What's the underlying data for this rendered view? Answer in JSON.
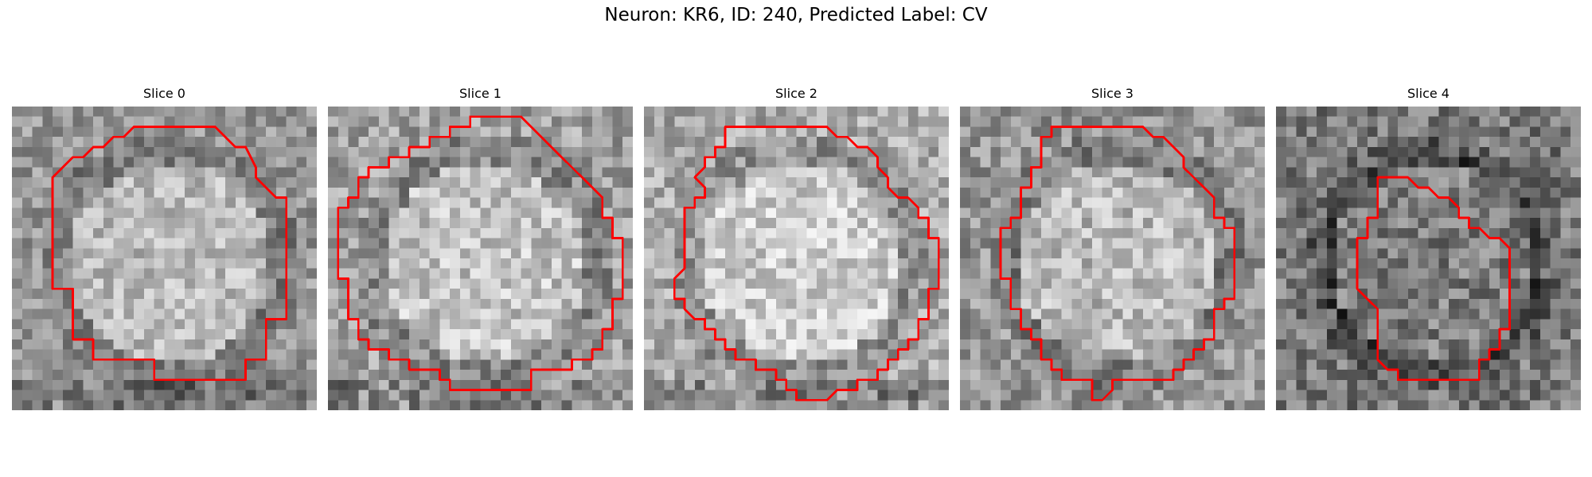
{
  "figure": {
    "title": "Neuron: KR6, ID: 240, Predicted Label: CV"
  },
  "panels": [
    {
      "title": "Slice 0",
      "seed": 11,
      "base": 150,
      "contrast": 0.9
    },
    {
      "title": "Slice 1",
      "seed": 23,
      "base": 160,
      "contrast": 1.0
    },
    {
      "title": "Slice 2",
      "seed": 37,
      "base": 170,
      "contrast": 1.0
    },
    {
      "title": "Slice 3",
      "seed": 49,
      "base": 150,
      "contrast": 1.0
    },
    {
      "title": "Slice 4",
      "seed": 61,
      "base": 120,
      "contrast": 1.1
    }
  ],
  "contour_color": "#ff0000",
  "image_type": "grayscale microscopy slices with red segmentation contour"
}
